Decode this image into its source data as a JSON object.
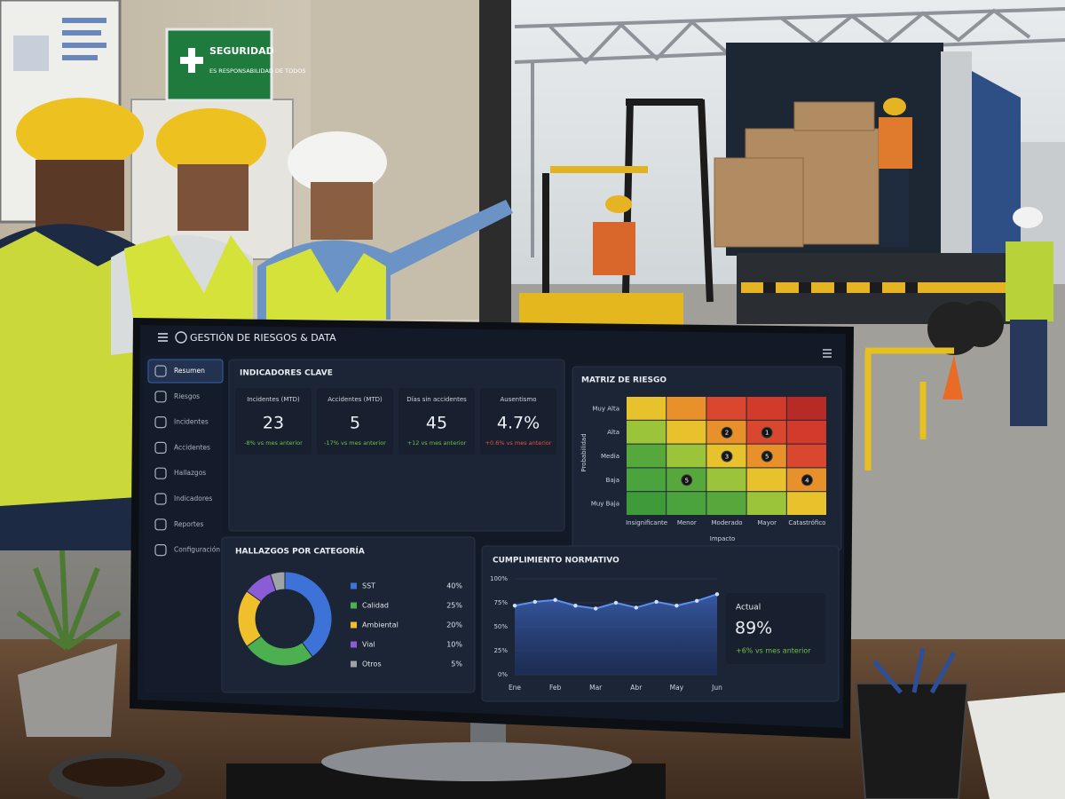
{
  "sign": {
    "title": "SEGURIDAD",
    "subtitle": "ES RESPONSABILIDAD DE TODOS"
  },
  "dashboard": {
    "title": "GESTIÓN DE RIESGOS & DATA",
    "nav": [
      "Resumen",
      "Riesgos",
      "Incidentes",
      "Accidentes",
      "Hallazgos",
      "Indicadores",
      "Reportes",
      "Configuración"
    ],
    "kpi_title": "INDICADORES CLAVE",
    "kpis": [
      {
        "label": "Incidentes (MTD)",
        "value": "23",
        "change": "-8% vs mes anterior",
        "change_color": "#6cc24a"
      },
      {
        "label": "Accidentes (MTD)",
        "value": "5",
        "change": "-17% vs mes anterior",
        "change_color": "#6cc24a"
      },
      {
        "label": "Días sin accidentes",
        "value": "45",
        "change": "+12 vs mes anterior",
        "change_color": "#6cc24a"
      },
      {
        "label": "Ausentismo",
        "value": "4.7%",
        "change": "+0.6% vs mes anterior",
        "change_color": "#e5533d"
      }
    ],
    "compliance_current": {
      "label": "Actual",
      "value": "89%",
      "change": "+6% vs mes anterior",
      "change_color": "#6cc24a"
    }
  },
  "chart_data": [
    {
      "type": "heatmap",
      "title": "MATRIZ DE RIESGO",
      "x_label": "Impacto",
      "y_label": "Probabilidad",
      "x_categories": [
        "Insignificante",
        "Menor",
        "Moderado",
        "Mayor",
        "Catastrófico"
      ],
      "y_categories": [
        "Muy Alta",
        "Alta",
        "Media",
        "Baja",
        "Muy Baja"
      ],
      "values": [
        [
          null,
          null,
          null,
          null,
          null
        ],
        [
          null,
          null,
          2,
          1,
          null
        ],
        [
          null,
          null,
          3,
          5,
          null
        ],
        [
          null,
          5,
          null,
          null,
          4
        ],
        [
          null,
          null,
          null,
          null,
          null
        ]
      ],
      "colors": [
        "#3f9a3a",
        "#4aa33c",
        "#56a83c",
        "#9cc43a",
        "#e8c22c",
        "#e8912a",
        "#d9472e",
        "#d23a2c",
        "#b82a26"
      ]
    },
    {
      "type": "donut",
      "title": "HALLAZGOS POR CATEGORÍA",
      "categories": [
        "SST",
        "Calidad",
        "Ambiental",
        "Vial",
        "Otros"
      ],
      "values": [
        40,
        25,
        20,
        10,
        5
      ],
      "value_labels": [
        "40%",
        "25%",
        "20%",
        "10%",
        "5%"
      ],
      "colors": [
        "#3d72d9",
        "#4caf50",
        "#efbf2c",
        "#8a5cd6",
        "#9ea3a8"
      ]
    },
    {
      "type": "line",
      "title": "CUMPLIMIENTO NORMATIVO",
      "categories": [
        "Ene",
        null,
        "Feb",
        null,
        "Mar",
        null,
        "Abr",
        null,
        "May",
        null,
        "Jun"
      ],
      "values": [
        72,
        76,
        78,
        72,
        69,
        75,
        70,
        76,
        72,
        77,
        84
      ],
      "color": "#5b8ff0",
      "ylim": [
        0,
        100
      ],
      "yticks": [
        {
          "value": 0,
          "label": "0%"
        },
        {
          "value": 25,
          "label": "25%"
        },
        {
          "value": 50,
          "label": "50%"
        },
        {
          "value": 75,
          "label": "75%"
        },
        {
          "value": 100,
          "label": "100%"
        }
      ]
    }
  ]
}
